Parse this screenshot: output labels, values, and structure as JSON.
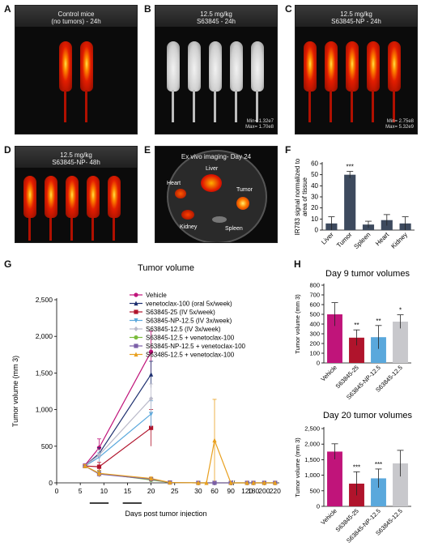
{
  "panels": {
    "A": {
      "letter": "A",
      "caption": [
        "Control mice",
        "(no tumors) - 24h"
      ]
    },
    "B": {
      "letter": "B",
      "caption": [
        "12.5 mg/kg",
        "S63845 - 24h"
      ],
      "scale": [
        "Min= 1.32e7",
        "Max= 1.70e8"
      ]
    },
    "C": {
      "letter": "C",
      "caption": [
        "12.5 mg/kg",
        "S63845-NP - 24h"
      ],
      "scale": [
        "Min= 2.75e8",
        "Max= 5.32e9"
      ]
    },
    "D": {
      "letter": "D",
      "caption": [
        "12.5 mg/kg",
        "S63845-NP- 48h"
      ]
    },
    "E": {
      "letter": "E",
      "caption": [
        "Ex vivo imaging- Day 24"
      ],
      "organs": [
        "Liver",
        "Heart",
        "Tumor",
        "Kidney",
        "Spleen"
      ]
    },
    "F": {
      "letter": "F"
    },
    "G": {
      "letter": "G"
    },
    "H": {
      "letter": "H"
    }
  },
  "chart_data": [
    {
      "id": "F",
      "type": "bar",
      "categories": [
        "Liver",
        "Tumor",
        "Spleen",
        "Heart",
        "Kidney"
      ],
      "values": [
        6,
        50,
        5,
        9,
        6
      ],
      "errors": [
        6,
        3,
        3,
        5,
        6
      ],
      "ylabel": [
        "IR783 signal normalized to",
        "area of tissue"
      ],
      "ylim": [
        0,
        60
      ],
      "yticks": [
        0,
        10,
        20,
        30,
        40,
        50,
        60
      ],
      "annotations": [
        {
          "category": "Tumor",
          "text": "***"
        }
      ],
      "colors": {
        "bar": "#3d4a5e"
      }
    },
    {
      "id": "G",
      "type": "line",
      "title": "Tumor volume",
      "xlabel": "Days post tumor injection",
      "ylabel": "Tumor volume (mm 3)",
      "ylim": [
        0,
        2500
      ],
      "yticks": [
        0,
        500,
        1000,
        1500,
        2000,
        2500
      ],
      "ytick_labels": [
        "0",
        "500",
        "1,000",
        "1,500",
        "2,000",
        "2,500"
      ],
      "xtick_labels": [
        "0",
        "5",
        "10",
        "15",
        "20",
        "25",
        "30",
        "60",
        "90",
        "120",
        "180",
        "200",
        "220"
      ],
      "series": [
        {
          "name": "Vehicle",
          "color": "#c0147a",
          "x": [
            6,
            9,
            20
          ],
          "values": [
            240,
            480,
            1790
          ],
          "err": [
            20,
            120,
            280
          ],
          "marker": "circle"
        },
        {
          "name": "venetoclax-100 (oral 5x/week)",
          "color": "#1d2f6f",
          "x": [
            6,
            9,
            20
          ],
          "values": [
            235,
            400,
            1480
          ],
          "err": [
            20,
            80,
            180
          ],
          "marker": "triangle"
        },
        {
          "name": "S63845-25 (IV 5x/week)",
          "color": "#b0142c",
          "x": [
            6,
            9,
            20
          ],
          "values": [
            230,
            220,
            750
          ],
          "err": [
            20,
            60,
            250
          ],
          "marker": "square"
        },
        {
          "name": "S63845-NP-12.5 (IV 3x/week)",
          "color": "#5aa8dc",
          "x": [
            6,
            9,
            20
          ],
          "values": [
            230,
            350,
            940
          ],
          "err": [
            20,
            60,
            180
          ],
          "marker": "triangle-down"
        },
        {
          "name": "S63845-12.5 (IV 3x/week)",
          "color": "#b9b9c9",
          "x": [
            6,
            9,
            20
          ],
          "values": [
            235,
            380,
            1150
          ],
          "err": [
            20,
            70,
            200
          ],
          "marker": "diamond"
        },
        {
          "name": "S63845-12.5 + venetoclax-100",
          "color": "#7bbd3c",
          "x": [
            6,
            9,
            20,
            24,
            30,
            60,
            90,
            120,
            180,
            200,
            220
          ],
          "values": [
            230,
            130,
            40,
            5,
            0,
            0,
            0,
            0,
            0,
            0,
            0
          ],
          "err": [
            20,
            40,
            20,
            5,
            0,
            0,
            0,
            0,
            0,
            0,
            0
          ],
          "marker": "circle"
        },
        {
          "name": "S63845-NP-12.5 + venetoclax-100",
          "color": "#7b5fa8",
          "x": [
            6,
            9,
            20,
            24,
            30,
            60,
            90,
            120,
            180,
            200,
            220
          ],
          "values": [
            230,
            120,
            50,
            5,
            0,
            0,
            0,
            0,
            0,
            0,
            0
          ],
          "err": [
            20,
            40,
            20,
            5,
            0,
            0,
            0,
            0,
            0,
            0,
            0
          ],
          "marker": "square"
        },
        {
          "name": "S63485-12.5 + venetoclax-100",
          "color": "#e8a020",
          "x": [
            6,
            9,
            20,
            24,
            30,
            45,
            60,
            90,
            120,
            180,
            200,
            220
          ],
          "values": [
            230,
            130,
            60,
            5,
            0,
            0,
            580,
            0,
            0,
            0,
            0,
            0
          ],
          "err": [
            20,
            40,
            20,
            5,
            0,
            0,
            560,
            0,
            0,
            0,
            0,
            0
          ],
          "marker": "triangle"
        }
      ]
    },
    {
      "id": "H1",
      "type": "bar",
      "title": "Day 9 tumor volumes",
      "categories": [
        "Vehicle",
        "S63845-25",
        "S63845-NP-12.5",
        "S63845-12.5"
      ],
      "values": [
        500,
        260,
        265,
        425
      ],
      "errors": [
        120,
        80,
        120,
        70
      ],
      "ylabel": "Tumor volume (mm 3)",
      "ylim": [
        0,
        800
      ],
      "yticks": [
        0,
        100,
        200,
        300,
        400,
        500,
        600,
        700,
        800
      ],
      "annotations": [
        "",
        "**",
        "**",
        "*"
      ],
      "colors": [
        "#c0147a",
        "#b0142c",
        "#5aa8dc",
        "#c8c8cc"
      ]
    },
    {
      "id": "H2",
      "type": "bar",
      "title": "Day 20 tumor volumes",
      "categories": [
        "Vehicle",
        "S63845-25",
        "S63845-NP-12.5",
        "S63845-12.5"
      ],
      "values": [
        1760,
        730,
        900,
        1380
      ],
      "errors": [
        250,
        380,
        300,
        420
      ],
      "ylabel": "Tumor volume (mm 3)",
      "ylim": [
        0,
        2500
      ],
      "yticks": [
        0,
        500,
        1000,
        1500,
        2000,
        2500
      ],
      "ytick_labels": [
        "0",
        "500",
        "1,000",
        "1,500",
        "2,000",
        "2,500"
      ],
      "annotations": [
        "",
        "***",
        "***",
        ""
      ],
      "colors": [
        "#c0147a",
        "#b0142c",
        "#5aa8dc",
        "#c8c8cc"
      ]
    }
  ]
}
